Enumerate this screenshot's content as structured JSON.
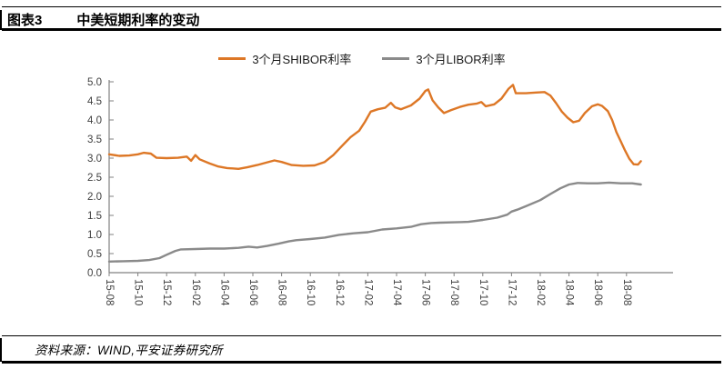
{
  "header": {
    "tag": "图表3",
    "title": "中美短期利率的变动"
  },
  "legend": [
    {
      "label": "3个月SHIBOR利率",
      "color": "#DD7726"
    },
    {
      "label": "3个月LIBOR利率",
      "color": "#8A8A8A"
    }
  ],
  "footer": {
    "source": "资料来源：WIND,平安证券研究所"
  },
  "chart_data": {
    "type": "line",
    "title": "中美短期利率的变动",
    "grid": false,
    "legend_position": "top",
    "axis_color": "#808080",
    "tick_label_color": "#404040",
    "x_axis": {
      "ticks": [
        "15-08",
        "15-10",
        "15-12",
        "16-02",
        "16-04",
        "16-06",
        "16-08",
        "16-10",
        "16-12",
        "17-02",
        "17-04",
        "17-06",
        "17-08",
        "17-10",
        "17-12",
        "18-02",
        "18-04",
        "18-06",
        "18-08"
      ],
      "months_per_tick": 2,
      "domain_months": [
        0,
        37
      ]
    },
    "y_axis": {
      "ticks": [
        "0.0",
        "0.5",
        "1.0",
        "1.5",
        "2.0",
        "2.5",
        "3.0",
        "3.5",
        "4.0",
        "4.5",
        "5.0"
      ],
      "range": [
        0,
        5
      ]
    },
    "series": [
      {
        "name": "3个月SHIBOR利率",
        "color": "#DD7726",
        "points": [
          [
            0,
            3.1
          ],
          [
            0.7,
            3.06
          ],
          [
            1.4,
            3.07
          ],
          [
            2,
            3.1
          ],
          [
            2.4,
            3.14
          ],
          [
            2.9,
            3.12
          ],
          [
            3.3,
            3.01
          ],
          [
            4,
            3.0
          ],
          [
            4.8,
            3.01
          ],
          [
            5.4,
            3.04
          ],
          [
            5.7,
            2.93
          ],
          [
            6,
            3.08
          ],
          [
            6.3,
            2.97
          ],
          [
            7,
            2.86
          ],
          [
            7.6,
            2.78
          ],
          [
            8.2,
            2.74
          ],
          [
            9,
            2.72
          ],
          [
            9.6,
            2.76
          ],
          [
            10.3,
            2.82
          ],
          [
            11,
            2.89
          ],
          [
            11.5,
            2.94
          ],
          [
            12,
            2.9
          ],
          [
            12.7,
            2.82
          ],
          [
            13.5,
            2.8
          ],
          [
            14.3,
            2.81
          ],
          [
            15,
            2.9
          ],
          [
            15.6,
            3.08
          ],
          [
            16.2,
            3.32
          ],
          [
            16.8,
            3.55
          ],
          [
            17.4,
            3.72
          ],
          [
            17.8,
            3.95
          ],
          [
            18.2,
            4.22
          ],
          [
            18.7,
            4.28
          ],
          [
            19.2,
            4.32
          ],
          [
            19.6,
            4.45
          ],
          [
            19.9,
            4.33
          ],
          [
            20.3,
            4.28
          ],
          [
            21,
            4.38
          ],
          [
            21.6,
            4.56
          ],
          [
            22,
            4.76
          ],
          [
            22.2,
            4.8
          ],
          [
            22.5,
            4.52
          ],
          [
            22.9,
            4.33
          ],
          [
            23.3,
            4.18
          ],
          [
            23.8,
            4.26
          ],
          [
            24.4,
            4.34
          ],
          [
            25,
            4.4
          ],
          [
            25.6,
            4.43
          ],
          [
            25.9,
            4.47
          ],
          [
            26.2,
            4.36
          ],
          [
            26.8,
            4.41
          ],
          [
            27.3,
            4.56
          ],
          [
            27.8,
            4.82
          ],
          [
            28.1,
            4.92
          ],
          [
            28.3,
            4.7
          ],
          [
            29,
            4.7
          ],
          [
            29.7,
            4.72
          ],
          [
            30.3,
            4.73
          ],
          [
            30.7,
            4.64
          ],
          [
            31.1,
            4.44
          ],
          [
            31.5,
            4.22
          ],
          [
            31.9,
            4.06
          ],
          [
            32.3,
            3.94
          ],
          [
            32.7,
            3.98
          ],
          [
            33.1,
            4.18
          ],
          [
            33.6,
            4.36
          ],
          [
            34,
            4.41
          ],
          [
            34.3,
            4.37
          ],
          [
            34.7,
            4.23
          ],
          [
            35,
            4.0
          ],
          [
            35.3,
            3.68
          ],
          [
            35.6,
            3.44
          ],
          [
            35.9,
            3.2
          ],
          [
            36.2,
            2.98
          ],
          [
            36.5,
            2.84
          ],
          [
            36.8,
            2.83
          ],
          [
            37,
            2.92
          ]
        ]
      },
      {
        "name": "3个月LIBOR利率",
        "color": "#8A8A8A",
        "points": [
          [
            0,
            0.29
          ],
          [
            1,
            0.3
          ],
          [
            2,
            0.31
          ],
          [
            2.8,
            0.33
          ],
          [
            3.5,
            0.38
          ],
          [
            4,
            0.47
          ],
          [
            4.6,
            0.57
          ],
          [
            5,
            0.61
          ],
          [
            6,
            0.62
          ],
          [
            7,
            0.63
          ],
          [
            8,
            0.63
          ],
          [
            9,
            0.65
          ],
          [
            9.7,
            0.68
          ],
          [
            10.3,
            0.66
          ],
          [
            11,
            0.7
          ],
          [
            11.8,
            0.76
          ],
          [
            12.5,
            0.82
          ],
          [
            13,
            0.85
          ],
          [
            14,
            0.88
          ],
          [
            15,
            0.92
          ],
          [
            16,
            0.99
          ],
          [
            17,
            1.03
          ],
          [
            18,
            1.06
          ],
          [
            19,
            1.13
          ],
          [
            20,
            1.16
          ],
          [
            21,
            1.2
          ],
          [
            21.7,
            1.27
          ],
          [
            22.4,
            1.3
          ],
          [
            23,
            1.31
          ],
          [
            24,
            1.32
          ],
          [
            25,
            1.33
          ],
          [
            26,
            1.38
          ],
          [
            27,
            1.44
          ],
          [
            27.7,
            1.52
          ],
          [
            28,
            1.6
          ],
          [
            28.4,
            1.65
          ],
          [
            29,
            1.74
          ],
          [
            30,
            1.9
          ],
          [
            30.7,
            2.06
          ],
          [
            31.4,
            2.21
          ],
          [
            32,
            2.31
          ],
          [
            32.6,
            2.35
          ],
          [
            33.3,
            2.34
          ],
          [
            34,
            2.34
          ],
          [
            34.8,
            2.36
          ],
          [
            35.6,
            2.34
          ],
          [
            36.4,
            2.34
          ],
          [
            37,
            2.31
          ]
        ]
      }
    ]
  }
}
